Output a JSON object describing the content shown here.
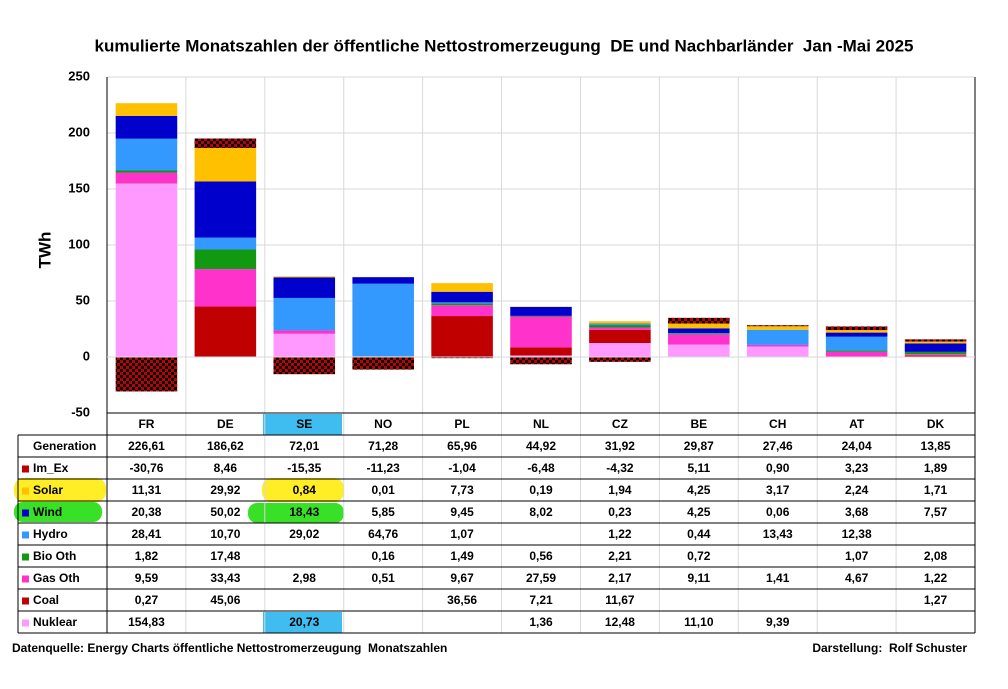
{
  "chart_data": {
    "type": "stacked_bar",
    "title": "kumulierte Monatszahlen der öffentliche Nettostromerzeugung  DE und Nachbarländer  Jan -Mai 2025",
    "y_label": "TWh",
    "ylim": [
      -50,
      250
    ],
    "yticks": [
      -50,
      0,
      50,
      100,
      150,
      200,
      250
    ],
    "grid": true,
    "categories": [
      "FR",
      "DE",
      "SE",
      "NO",
      "PL",
      "NL",
      "CZ",
      "BE",
      "CH",
      "AT",
      "DK"
    ],
    "generation": {
      "name": "Generation",
      "values": [
        226.61,
        186.62,
        72.01,
        71.28,
        65.96,
        44.92,
        31.92,
        29.87,
        27.46,
        24.04,
        13.85
      ],
      "value_labels": [
        "226,61",
        "186,62",
        "72,01",
        "71,28",
        "65,96",
        "44,92",
        "31,92",
        "29,87",
        "27,46",
        "24,04",
        "13,85"
      ]
    },
    "series": [
      {
        "name": "Im_Ex",
        "color": "#c00000",
        "pattern": "checker",
        "values": [
          -30.76,
          8.46,
          -15.35,
          -11.23,
          -1.04,
          -6.48,
          -4.32,
          5.11,
          0.9,
          3.23,
          1.89
        ],
        "value_labels": [
          "-30,76",
          "8,46",
          "-15,35",
          "-11,23",
          "-1,04",
          "-6,48",
          "-4,32",
          "5,11",
          "0,90",
          "3,23",
          "1,89"
        ]
      },
      {
        "name": "Solar",
        "color": "#ffc000",
        "values": [
          11.31,
          29.92,
          0.84,
          0.01,
          7.73,
          0.19,
          1.94,
          4.25,
          3.17,
          2.24,
          1.71
        ],
        "value_labels": [
          "11,31",
          "29,92",
          "0,84",
          "0,01",
          "7,73",
          "0,19",
          "1,94",
          "4,25",
          "3,17",
          "2,24",
          "1,71"
        ]
      },
      {
        "name": "Wind",
        "color": "#0000cc",
        "values": [
          20.38,
          50.02,
          18.43,
          5.85,
          9.45,
          8.02,
          0.23,
          4.25,
          0.06,
          3.68,
          7.57
        ],
        "value_labels": [
          "20,38",
          "50,02",
          "18,43",
          "5,85",
          "9,45",
          "8,02",
          "0,23",
          "4,25",
          "0,06",
          "3,68",
          "7,57"
        ]
      },
      {
        "name": "Hydro",
        "color": "#3399ff",
        "values": [
          28.41,
          10.7,
          29.02,
          64.76,
          1.07,
          null,
          1.22,
          0.44,
          13.43,
          12.38,
          null
        ],
        "value_labels": [
          "28,41",
          "10,70",
          "29,02",
          "64,76",
          "1,07",
          null,
          "1,22",
          "0,44",
          "13,43",
          "12,38",
          null
        ]
      },
      {
        "name": "Bio Oth",
        "color": "#119911",
        "values": [
          1.82,
          17.48,
          null,
          0.16,
          1.49,
          0.56,
          2.21,
          0.72,
          null,
          1.07,
          2.08
        ],
        "value_labels": [
          "1,82",
          "17,48",
          null,
          "0,16",
          "1,49",
          "0,56",
          "2,21",
          "0,72",
          null,
          "1,07",
          "2,08"
        ]
      },
      {
        "name": "Gas Oth",
        "color": "#ff33cc",
        "values": [
          9.59,
          33.43,
          2.98,
          0.51,
          9.67,
          27.59,
          2.17,
          9.11,
          1.41,
          4.67,
          1.22
        ],
        "value_labels": [
          "9,59",
          "33,43",
          "2,98",
          "0,51",
          "9,67",
          "27,59",
          "2,17",
          "9,11",
          "1,41",
          "4,67",
          "1,22"
        ]
      },
      {
        "name": "Coal",
        "color": "#c00000",
        "values": [
          0.27,
          45.06,
          null,
          null,
          36.56,
          7.21,
          11.67,
          null,
          null,
          null,
          1.27
        ],
        "value_labels": [
          "0,27",
          "45,06",
          null,
          null,
          "36,56",
          "7,21",
          "11,67",
          null,
          null,
          null,
          "1,27"
        ]
      },
      {
        "name": "Nuklear",
        "color": "#ff99ff",
        "values": [
          154.83,
          null,
          20.73,
          null,
          null,
          1.36,
          12.48,
          11.1,
          9.39,
          null,
          null
        ],
        "value_labels": [
          "154,83",
          null,
          "20,73",
          null,
          null,
          "1,36",
          "12,48",
          "11,10",
          "9,39",
          null,
          null
        ]
      }
    ],
    "source": "Datenquelle: Energy Charts öffentliche Nettostromerzeugung  Monatszahlen",
    "author": "Darstellung:  Rolf Schuster"
  }
}
